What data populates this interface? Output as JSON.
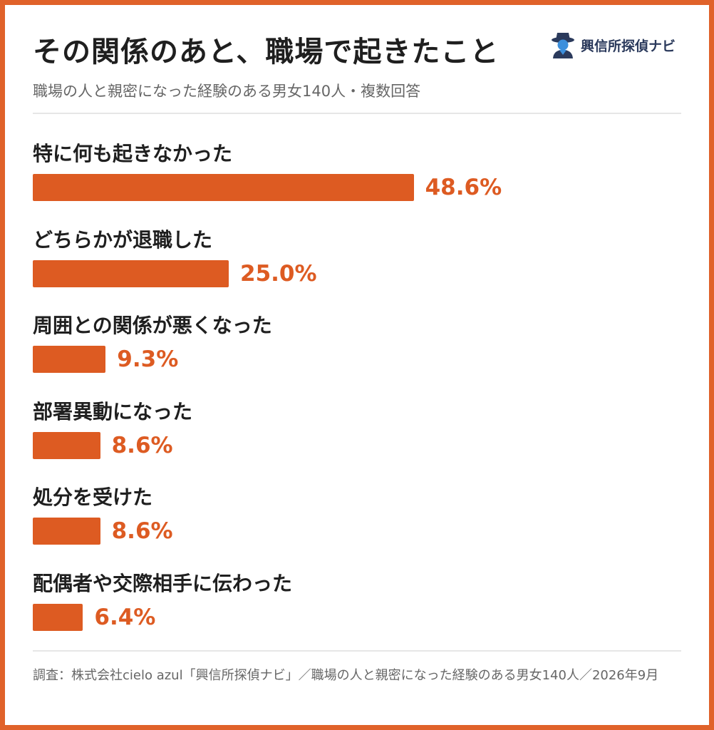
{
  "header": {
    "title": "その関係のあと、職場で起きたこと",
    "subtitle": "職場の人と親密になった経験のある男女140人・複数回答",
    "logo_text": "興信所探偵ナビ",
    "logo_icon": "detective-icon"
  },
  "chart_data": {
    "type": "bar",
    "orientation": "horizontal",
    "title": "その関係のあと、職場で起きたこと",
    "subtitle": "職場の人と親密になった経験のある男女140人・複数回答",
    "categories": [
      "特に何も起きなかった",
      "どちらかが退職した",
      "周囲との関係が悪くなった",
      "部署異動になった",
      "処分を受けた",
      "配偶者や交際相手に伝わった"
    ],
    "values": [
      48.6,
      25.0,
      9.3,
      8.6,
      8.6,
      6.4
    ],
    "value_labels": [
      "48.6%",
      "25.0%",
      "9.3%",
      "8.6%",
      "8.6%",
      "6.4%"
    ],
    "unit": "%",
    "bar_color": "#dd5b22",
    "grid": false
  },
  "footer": {
    "source": "調査：株式会社cielo azul「興信所探偵ナビ」／職場の人と親密になった経験のある男女140人／2026年9月"
  },
  "colors": {
    "border": "#e0622a",
    "accent": "#dd5b22",
    "title": "#1f1f1f",
    "muted": "#666666",
    "logo": "#2b3a5c"
  }
}
